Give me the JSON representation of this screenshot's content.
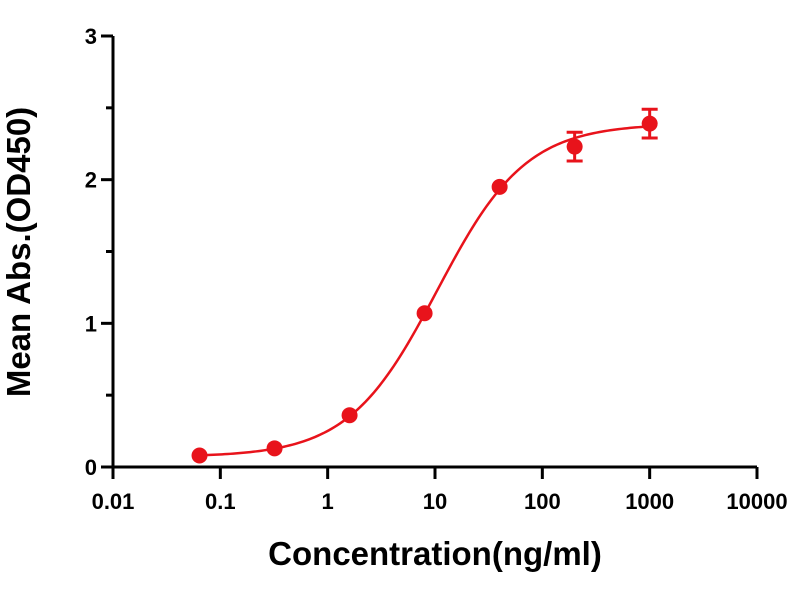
{
  "colors": {
    "series": "#e8131b",
    "axis": "#000000"
  },
  "chart_data": {
    "type": "scatter",
    "title": "",
    "xlabel": "Concentration(ng/ml)",
    "ylabel": "Mean Abs.(OD450)",
    "x_scale": "log",
    "xlim": [
      0.01,
      10000
    ],
    "ylim": [
      0,
      3
    ],
    "x_ticks": [
      0.01,
      0.1,
      1,
      10,
      100,
      1000,
      10000
    ],
    "x_tick_labels": [
      "0.01",
      "0.1",
      "1",
      "10",
      "100",
      "1000",
      "10000"
    ],
    "y_ticks": [
      0,
      1,
      2,
      3
    ],
    "y_tick_labels": [
      "0",
      "1",
      "2",
      "3"
    ],
    "grid": false,
    "legend": false,
    "series": [
      {
        "fit": "4PL",
        "points": [
          {
            "x": 0.064,
            "y": 0.08,
            "err": 0.02
          },
          {
            "x": 0.32,
            "y": 0.13,
            "err": 0.02
          },
          {
            "x": 1.6,
            "y": 0.36,
            "err": 0.02
          },
          {
            "x": 8,
            "y": 1.07,
            "err": 0.03
          },
          {
            "x": 40,
            "y": 1.95,
            "err": 0.03
          },
          {
            "x": 200,
            "y": 2.23,
            "err": 0.1
          },
          {
            "x": 1000,
            "y": 2.39,
            "err": 0.1
          }
        ],
        "fit_params": {
          "bottom": 0.07,
          "top": 2.39,
          "ec50": 10.5,
          "hill": 1.05
        }
      }
    ]
  }
}
